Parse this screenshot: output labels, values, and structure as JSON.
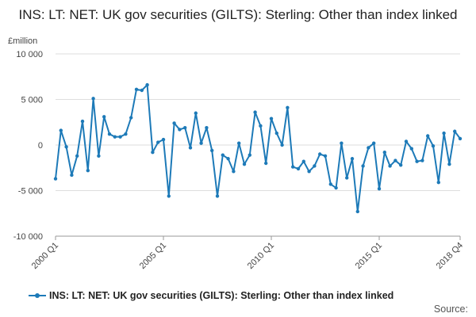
{
  "chart_data": {
    "type": "line",
    "title": "INS: LT: NET: UK gov securities (GILTS): Sterling: Other than index linked",
    "ylabel": "£million",
    "xlabel": "",
    "ylim": [
      -10000,
      10000
    ],
    "yticks": [
      10000,
      5000,
      0,
      -5000,
      -10000
    ],
    "ytick_labels": [
      "10 000",
      "5 000",
      "0",
      "-5 000",
      "-10 000"
    ],
    "xtick_labels": [
      "2000 Q1",
      "2005 Q1",
      "2010 Q1",
      "2015 Q1",
      "2018 Q4"
    ],
    "grid": true,
    "legend_position": "bottom",
    "color": "#1d7ab8",
    "series": [
      {
        "name": "INS: LT: NET: UK gov securities (GILTS): Sterling: Other than index linked",
        "x_start": "2000 Q1",
        "values": [
          -3700,
          1600,
          -200,
          -3300,
          -1200,
          2600,
          -2800,
          5100,
          -1200,
          3100,
          1200,
          900,
          900,
          1200,
          3000,
          6100,
          6000,
          6600,
          -800,
          300,
          600,
          -5600,
          2400,
          1700,
          1900,
          -300,
          3500,
          200,
          1900,
          -600,
          -5600,
          -1100,
          -1500,
          -2900,
          200,
          -2100,
          -1100,
          3600,
          2100,
          -2000,
          2900,
          1300,
          0,
          4100,
          -2400,
          -2600,
          -1800,
          -2900,
          -2300,
          -1000,
          -1200,
          -4300,
          -4700,
          200,
          -3600,
          -1500,
          -7300,
          -2300,
          -300,
          200,
          -4800,
          -800,
          -2300,
          -1700,
          -2200,
          400,
          -400,
          -1800,
          -1700,
          1000,
          -100,
          -4100,
          1300,
          -2100,
          1500,
          700
        ]
      }
    ]
  },
  "source_label": "Source:"
}
